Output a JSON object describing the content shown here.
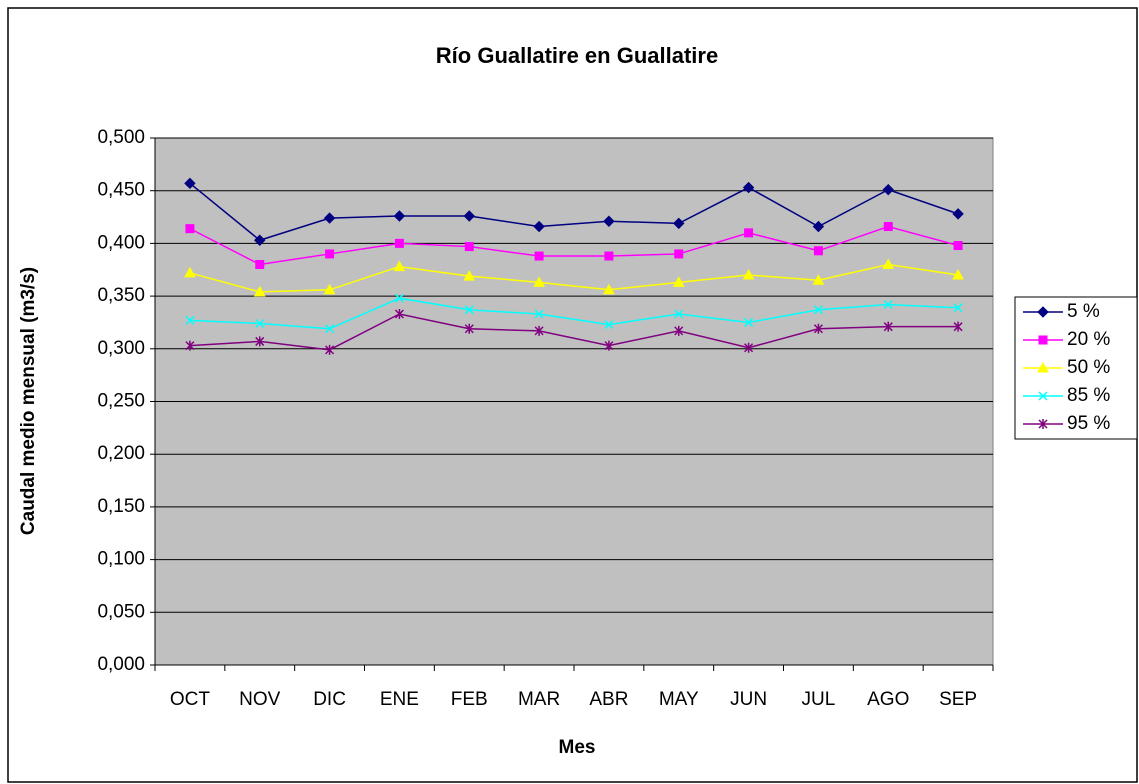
{
  "chart_data": {
    "type": "line",
    "title": "Río Guallatire en Guallatire",
    "x_label": "Mes",
    "y_label": "Caudal medio mensual (m3/s)",
    "categories": [
      "OCT",
      "NOV",
      "DIC",
      "ENE",
      "FEB",
      "MAR",
      "ABR",
      "MAY",
      "JUN",
      "JUL",
      "AGO",
      "SEP"
    ],
    "series": [
      {
        "name": "5 %",
        "color": "#000080",
        "marker": "diamond",
        "values": [
          0.457,
          0.403,
          0.424,
          0.426,
          0.426,
          0.416,
          0.421,
          0.419,
          0.453,
          0.416,
          0.451,
          0.428
        ]
      },
      {
        "name": "20 %",
        "color": "#ff00ff",
        "marker": "square",
        "values": [
          0.414,
          0.38,
          0.39,
          0.4,
          0.397,
          0.388,
          0.388,
          0.39,
          0.41,
          0.393,
          0.416,
          0.398
        ]
      },
      {
        "name": "50 %",
        "color": "#ffff00",
        "marker": "triangle",
        "values": [
          0.372,
          0.354,
          0.356,
          0.378,
          0.369,
          0.363,
          0.356,
          0.363,
          0.37,
          0.365,
          0.38,
          0.37
        ]
      },
      {
        "name": "85 %",
        "color": "#00ffff",
        "marker": "x",
        "values": [
          0.327,
          0.324,
          0.319,
          0.348,
          0.337,
          0.333,
          0.323,
          0.333,
          0.325,
          0.337,
          0.342,
          0.339
        ]
      },
      {
        "name": "95 %",
        "color": "#800080",
        "marker": "star",
        "values": [
          0.303,
          0.307,
          0.299,
          0.333,
          0.319,
          0.317,
          0.303,
          0.317,
          0.301,
          0.319,
          0.321,
          0.321
        ]
      }
    ],
    "ylim": [
      0,
      0.5
    ],
    "yticks": [
      {
        "value": 0,
        "label": "0,000"
      },
      {
        "value": 0.05,
        "label": "0,050"
      },
      {
        "value": 0.1,
        "label": "0,100"
      },
      {
        "value": 0.15,
        "label": "0,150"
      },
      {
        "value": 0.2,
        "label": "0,200"
      },
      {
        "value": 0.25,
        "label": "0,250"
      },
      {
        "value": 0.3,
        "label": "0,300"
      },
      {
        "value": 0.35,
        "label": "0,350"
      },
      {
        "value": 0.4,
        "label": "0,400"
      },
      {
        "value": 0.45,
        "label": "0,450"
      },
      {
        "value": 0.5,
        "label": "0,500"
      }
    ],
    "grid": true,
    "legend": "right"
  }
}
